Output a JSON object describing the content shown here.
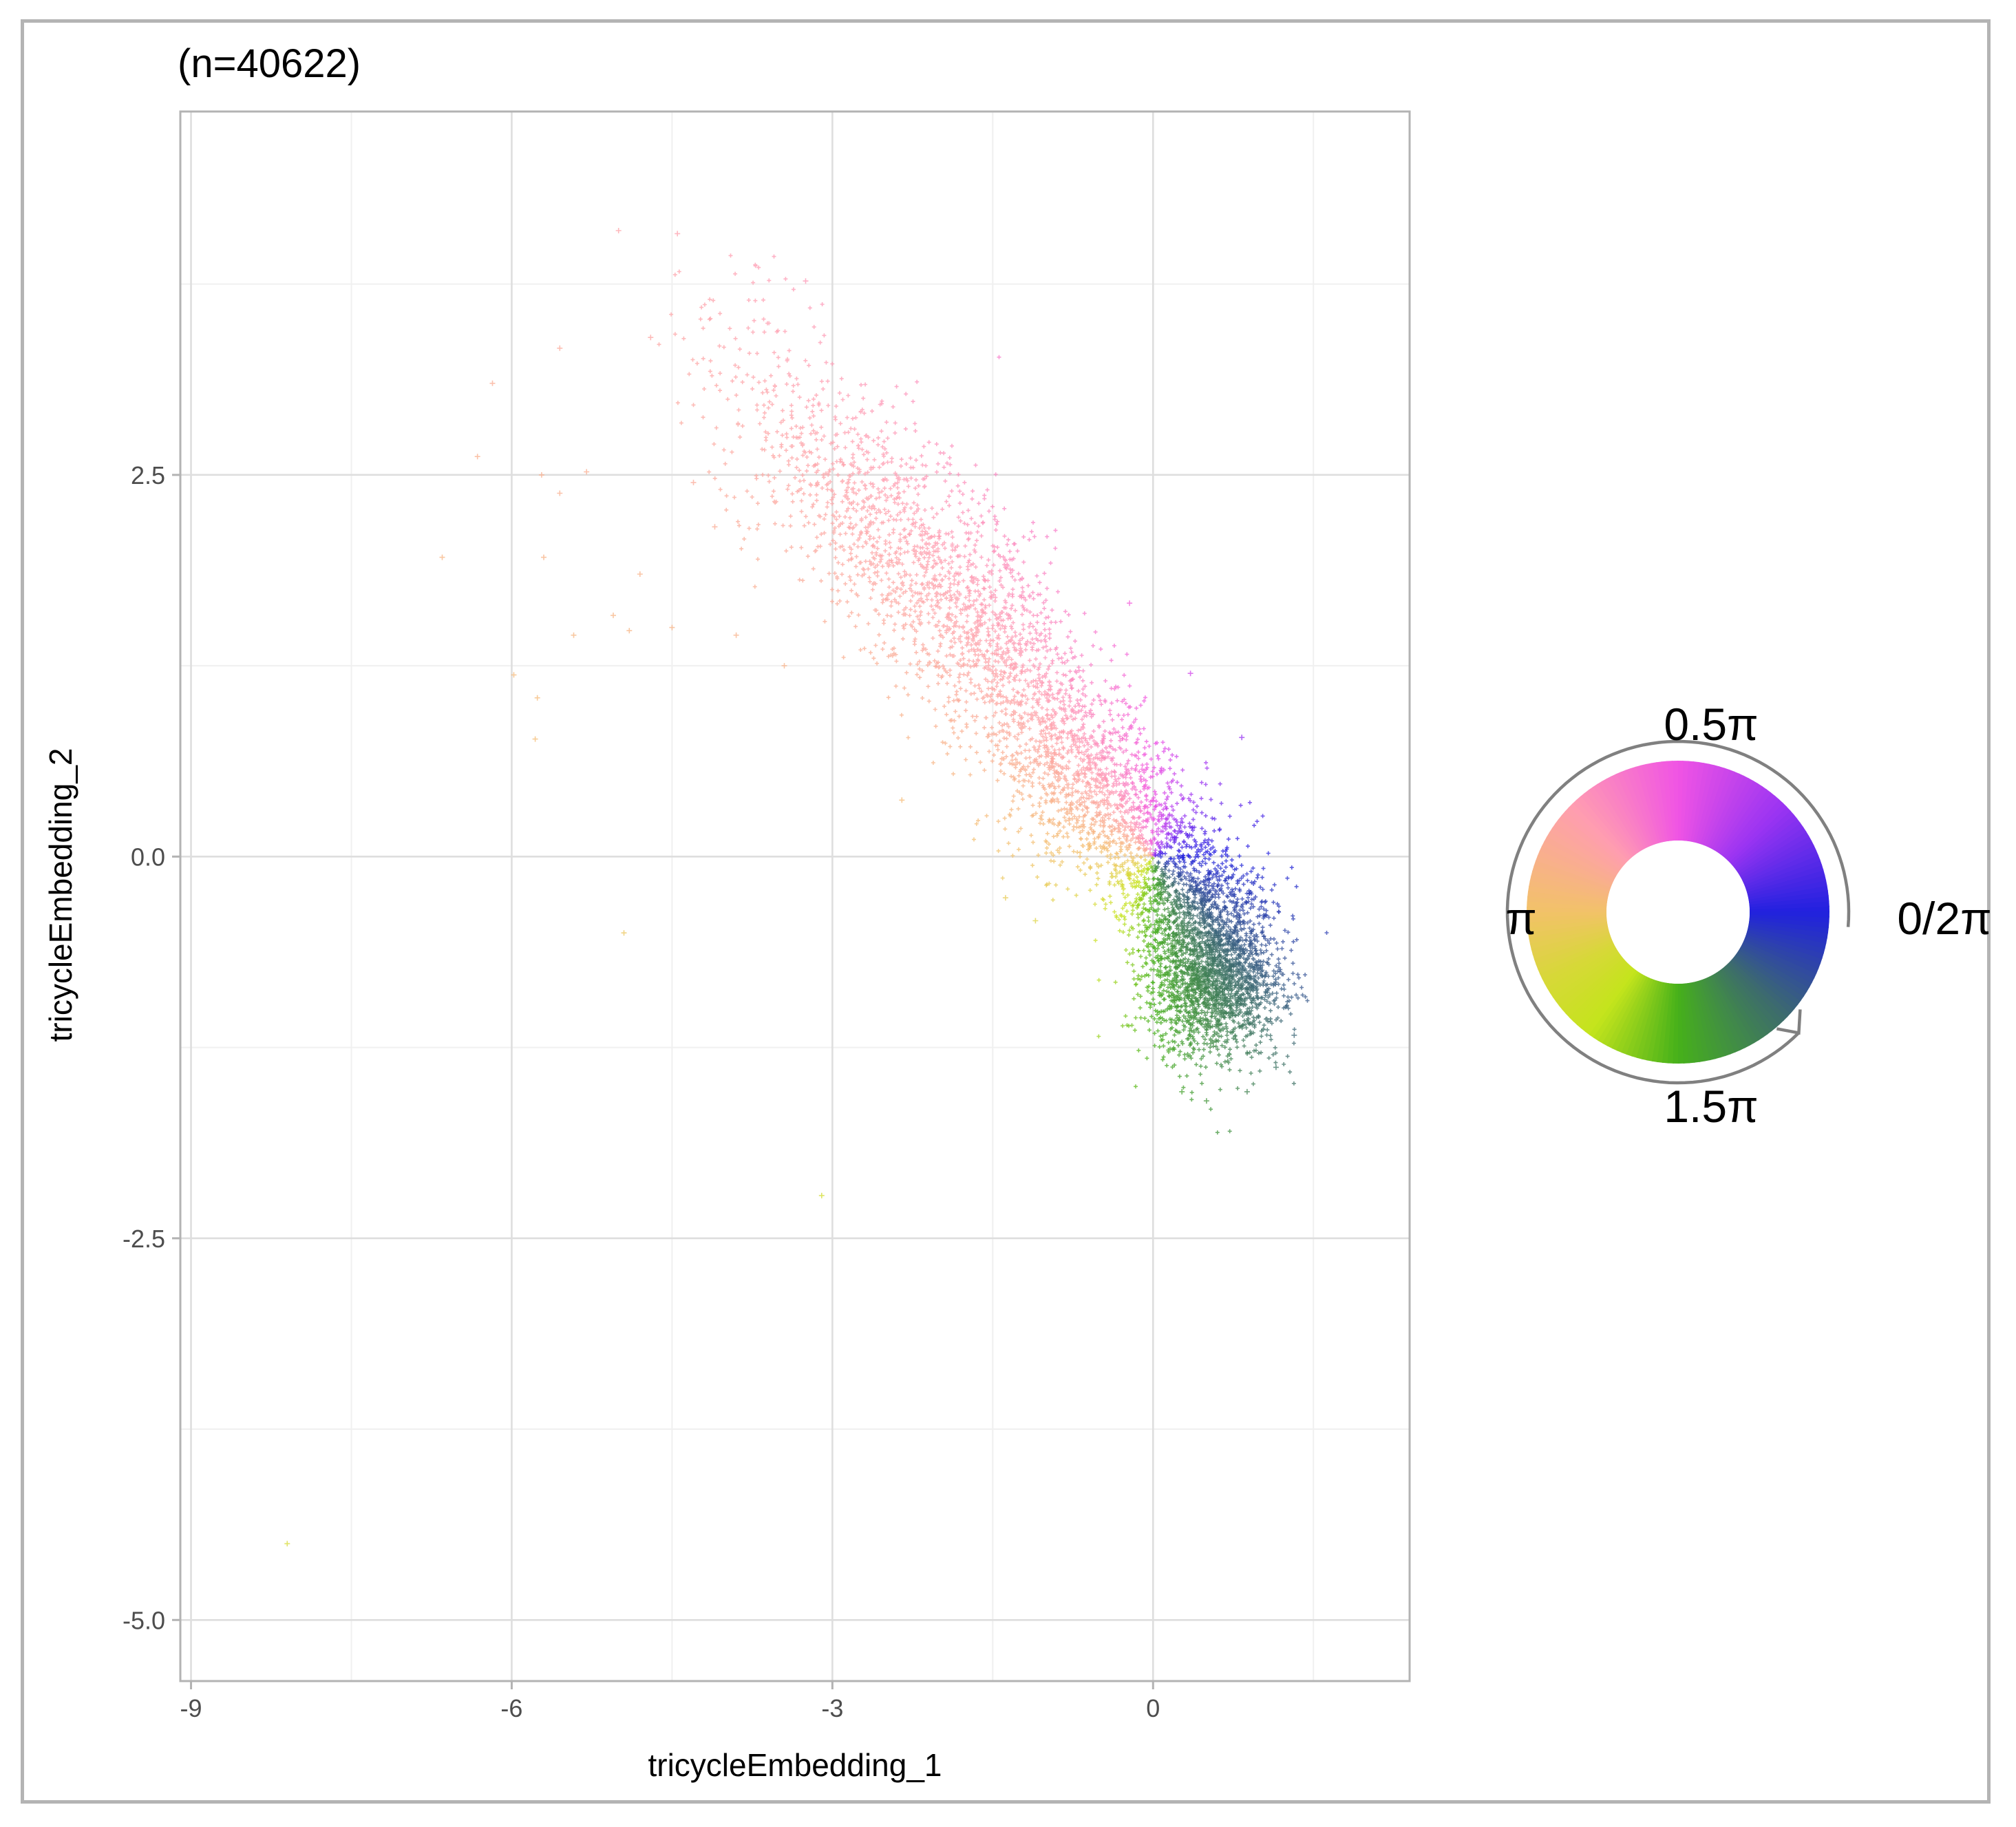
{
  "chart_data": {
    "type": "scatter",
    "title": "(n=40622)",
    "xlabel": "tricycleEmbedding_1",
    "ylabel": "tricycleEmbedding_2",
    "xlim": [
      -9.1,
      2.4
    ],
    "ylim": [
      -5.4,
      4.88
    ],
    "xticks": [
      -9,
      -6,
      -3,
      0
    ],
    "xtick_labels": [
      "-9",
      "-6",
      "-3",
      "0"
    ],
    "yticks": [
      -5,
      -2.5,
      0,
      2.5
    ],
    "ytick_labels": [
      "-5.0",
      "-2.5",
      "0.0",
      "2.5"
    ],
    "x_minor_gridlines": [
      -7.5,
      -4.5,
      -1.5,
      1.5
    ],
    "y_minor_gridlines": [
      -3.75,
      -1.25,
      1.25,
      3.75
    ],
    "grid": true,
    "point_shape": "plus",
    "n_points": 40622,
    "color_encoding": "cyclic hue of angle in embedding space (0 to 2π)",
    "outliers": [
      {
        "x": -8.1,
        "y": -4.5
      },
      {
        "x": -3.1,
        "y": -2.22
      },
      {
        "x": -4.95,
        "y": -0.5
      },
      {
        "x": -6.65,
        "y": 1.96
      },
      {
        "x": -6.32,
        "y": 2.62
      },
      {
        "x": -6.18,
        "y": 3.1
      },
      {
        "x": -5.98,
        "y": 1.19
      },
      {
        "x": -5.78,
        "y": 0.77
      },
      {
        "x": -5.76,
        "y": 1.04
      },
      {
        "x": -5.7,
        "y": 1.96
      },
      {
        "x": -5.72,
        "y": 2.5
      },
      {
        "x": -5.55,
        "y": 2.38
      },
      {
        "x": -5.55,
        "y": 3.33
      },
      {
        "x": -5.42,
        "y": 1.45
      },
      {
        "x": -5.3,
        "y": 2.52
      },
      {
        "x": -5.05,
        "y": 1.58
      },
      {
        "x": -4.9,
        "y": 1.48
      },
      {
        "x": -4.8,
        "y": 1.85
      },
      {
        "x": -4.7,
        "y": 3.4
      },
      {
        "x": -4.5,
        "y": 1.5
      },
      {
        "x": -4.3,
        "y": 2.45
      },
      {
        "x": -4.1,
        "y": 2.16
      },
      {
        "x": -3.9,
        "y": 1.45
      },
      {
        "x": -3.45,
        "y": 1.25
      },
      {
        "x": -4.45,
        "y": 4.08
      },
      {
        "x": -5.0,
        "y": 4.1
      },
      {
        "x": -3.25,
        "y": 3.77
      },
      {
        "x": -2.35,
        "y": 0.37
      },
      {
        "x": -1.38,
        "y": -0.27
      },
      {
        "x": -1.1,
        "y": -0.42
      },
      {
        "x": 0.27,
        "y": -1.54
      },
      {
        "x": 0.5,
        "y": -1.6
      },
      {
        "x": 0.88,
        "y": -1.54
      },
      {
        "x": 1.32,
        "y": -1.17
      },
      {
        "x": 1.15,
        "y": -1.38
      },
      {
        "x": 0.83,
        "y": 0.78
      },
      {
        "x": -0.22,
        "y": 1.66
      },
      {
        "x": 0.35,
        "y": 1.2
      }
    ],
    "cluster_path": [
      {
        "x": -4.2,
        "y": 3.45,
        "sx": 0.32,
        "sy": 0.35,
        "w": 0.4
      },
      {
        "x": -3.3,
        "y": 2.75,
        "sx": 0.38,
        "sy": 0.32,
        "w": 1.6
      },
      {
        "x": -2.5,
        "y": 2.15,
        "sx": 0.38,
        "sy": 0.32,
        "w": 2.6
      },
      {
        "x": -1.7,
        "y": 1.55,
        "sx": 0.35,
        "sy": 0.3,
        "w": 3.2
      },
      {
        "x": -0.9,
        "y": 0.75,
        "sx": 0.32,
        "sy": 0.27,
        "w": 3.4
      },
      {
        "x": -0.15,
        "y": 0.15,
        "sx": 0.3,
        "sy": 0.25,
        "w": 3.0
      },
      {
        "x": 0.45,
        "y": -0.45,
        "sx": 0.32,
        "sy": 0.3,
        "w": 5.0
      },
      {
        "x": 0.6,
        "y": -0.85,
        "sx": 0.3,
        "sy": 0.22,
        "w": 4.0
      }
    ],
    "legend": {
      "type": "hue-wheel",
      "placement": "right",
      "labels": {
        "top": "0.5π",
        "left": "π",
        "right": "0/2π",
        "bottom": "1.5π"
      },
      "direction": "counter-clockwise",
      "hue_stops": [
        {
          "angle_pi": 0.0,
          "color": "#2121df"
        },
        {
          "angle_pi": 0.25,
          "color": "#9a34f2"
        },
        {
          "angle_pi": 0.5,
          "color": "#f054e4"
        },
        {
          "angle_pi": 0.75,
          "color": "#ff9db0"
        },
        {
          "angle_pi": 1.0,
          "color": "#f2c268"
        },
        {
          "angle_pi": 1.15,
          "color": "#d7d838"
        },
        {
          "angle_pi": 1.3,
          "color": "#c4e41c"
        },
        {
          "angle_pi": 1.5,
          "color": "#46b11a"
        },
        {
          "angle_pi": 1.75,
          "color": "#3d6c6c"
        },
        {
          "angle_pi": 2.0,
          "color": "#2121df"
        }
      ]
    }
  }
}
